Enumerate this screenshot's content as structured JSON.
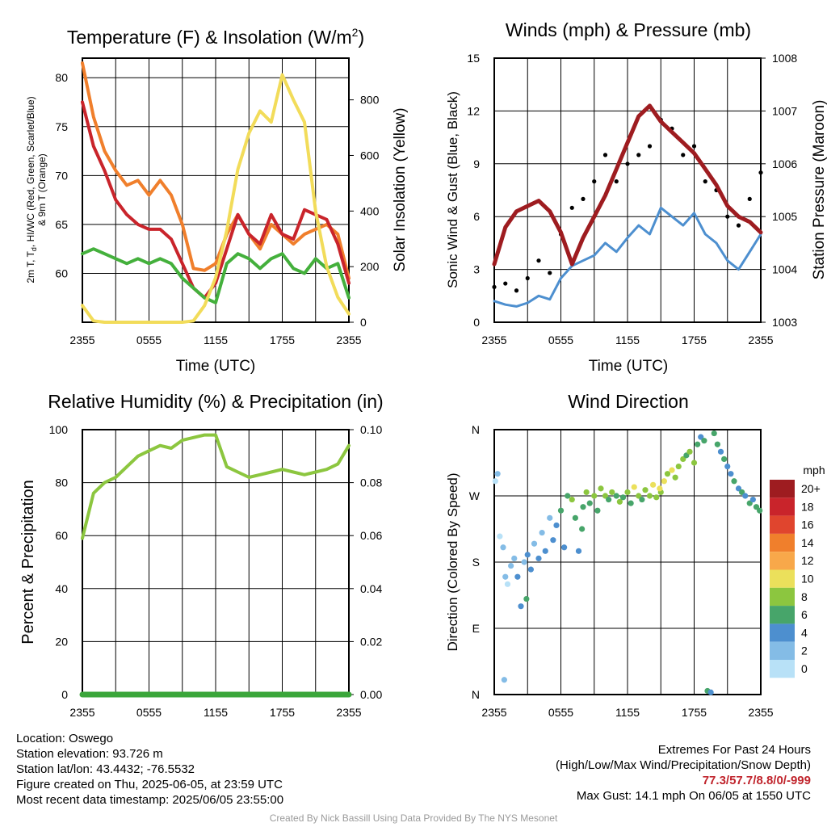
{
  "chart_data": [
    {
      "type": "line",
      "title": "Temperature (F) & Insolation (W/m²)",
      "xlabel": "Time (UTC)",
      "ylabel": "2m T, T_d, HI/WC (Red, Green, Scarlet/Blue) & 9m T (Orange)",
      "y2label": "Solar Insolation (Yellow)",
      "x_ticks": [
        "2355",
        "0555",
        "1155",
        "1755",
        "2355"
      ],
      "ylim": [
        55,
        82
      ],
      "y_ticks": [
        60,
        65,
        70,
        75,
        80
      ],
      "y2lim": [
        0,
        950
      ],
      "y2_ticks": [
        0,
        200,
        400,
        600,
        800
      ],
      "x": [
        0,
        1,
        2,
        3,
        4,
        5,
        6,
        7,
        8,
        9,
        10,
        11,
        12,
        13,
        14,
        15,
        16,
        17,
        18,
        19,
        20,
        21,
        22,
        23,
        24
      ],
      "series": [
        {
          "name": "9m T",
          "axis": "left",
          "color": "#f07f2c",
          "values": [
            81.5,
            76,
            72.5,
            70.5,
            69,
            69.5,
            68,
            69.5,
            68,
            65,
            60.5,
            60.3,
            61,
            64,
            66,
            64,
            62.5,
            65,
            64,
            63,
            64,
            64.5,
            65,
            64,
            59.5
          ]
        },
        {
          "name": "2m T",
          "axis": "left",
          "color": "#c9242b",
          "values": [
            77.5,
            73,
            70.5,
            67.5,
            66,
            65,
            64.5,
            64.5,
            63.5,
            61,
            58.5,
            57.5,
            59,
            62.5,
            66,
            64,
            63,
            66,
            64,
            63.5,
            66.5,
            66,
            65.5,
            63,
            59
          ]
        },
        {
          "name": "T_d",
          "axis": "left",
          "color": "#44b03c",
          "values": [
            62,
            62.5,
            62,
            61.5,
            61,
            61.5,
            61,
            61.5,
            61,
            59.5,
            58.5,
            57.5,
            57,
            61,
            62,
            61.5,
            60.5,
            61.5,
            62,
            60.5,
            60,
            61.5,
            60.5,
            61,
            57.5
          ]
        },
        {
          "name": "Solar Insolation",
          "axis": "right",
          "color": "#f2dc5a",
          "values": [
            60,
            5,
            0,
            0,
            0,
            0,
            0,
            0,
            0,
            0,
            5,
            60,
            160,
            330,
            550,
            680,
            760,
            720,
            890,
            800,
            720,
            400,
            200,
            90,
            30
          ]
        }
      ]
    },
    {
      "type": "line",
      "title": "Winds (mph) & Pressure (mb)",
      "xlabel": "Time (UTC)",
      "ylabel": "Sonic Wind & Gust (Blue, Black)",
      "y2label": "Station Pressure (Maroon)",
      "x_ticks": [
        "2355",
        "0555",
        "1155",
        "1755",
        "2355"
      ],
      "ylim": [
        0,
        15
      ],
      "y_ticks": [
        0,
        3,
        6,
        9,
        12,
        15
      ],
      "y2lim": [
        1003,
        1008
      ],
      "y2_ticks": [
        1003,
        1004,
        1005,
        1006,
        1007,
        1008
      ],
      "x": [
        0,
        1,
        2,
        3,
        4,
        5,
        6,
        7,
        8,
        9,
        10,
        11,
        12,
        13,
        14,
        15,
        16,
        17,
        18,
        19,
        20,
        21,
        22,
        23,
        24
      ],
      "series": [
        {
          "name": "Sonic Wind",
          "axis": "left",
          "color": "#4d8fcf",
          "values": [
            1.2,
            1.0,
            0.9,
            1.1,
            1.5,
            1.3,
            2.5,
            3.2,
            3.5,
            3.8,
            4.5,
            4.0,
            4.8,
            5.5,
            5.0,
            6.5,
            6.0,
            5.5,
            6.2,
            5.0,
            4.5,
            3.5,
            3.0,
            4.0,
            5.0
          ]
        },
        {
          "name": "Gust",
          "axis": "left",
          "color": "#000000",
          "values": [
            2.0,
            2.2,
            1.8,
            2.5,
            3.5,
            2.8,
            5.0,
            6.5,
            7.0,
            8.0,
            9.5,
            8.0,
            9.0,
            9.5,
            10.0,
            11.5,
            11.0,
            9.5,
            10.0,
            8.0,
            7.5,
            6.0,
            5.5,
            7.0,
            8.5
          ]
        },
        {
          "name": "Station Pressure",
          "axis": "right",
          "color": "#9e1c20",
          "values": [
            1004.1,
            1004.8,
            1005.1,
            1005.2,
            1005.3,
            1005.1,
            1004.7,
            1004.1,
            1004.6,
            1005.0,
            1005.4,
            1005.9,
            1006.4,
            1006.9,
            1007.1,
            1006.8,
            1006.6,
            1006.4,
            1006.2,
            1005.9,
            1005.6,
            1005.2,
            1005.0,
            1004.9,
            1004.7
          ]
        }
      ]
    },
    {
      "type": "line",
      "title": "Relative Humidity (%) & Precipitation (in)",
      "ylabel": "Percent & Precipitation",
      "x_ticks": [
        "2355",
        "0555",
        "1155",
        "1755",
        "2355"
      ],
      "ylim": [
        0,
        100
      ],
      "y_ticks": [
        0,
        20,
        40,
        60,
        80,
        100
      ],
      "y2lim": [
        0,
        0.1
      ],
      "y2_ticks": [
        "0.00",
        "0.02",
        "0.04",
        "0.06",
        "0.08",
        "0.10"
      ],
      "x": [
        0,
        1,
        2,
        3,
        4,
        5,
        6,
        7,
        8,
        9,
        10,
        11,
        12,
        13,
        14,
        15,
        16,
        17,
        18,
        19,
        20,
        21,
        22,
        23,
        24
      ],
      "series": [
        {
          "name": "Relative Humidity",
          "axis": "left",
          "color": "#8cc63f",
          "values": [
            59,
            76,
            80,
            82,
            86,
            90,
            92,
            94,
            93,
            96,
            97,
            98,
            98,
            86,
            84,
            82,
            83,
            84,
            85,
            84,
            83,
            84,
            85,
            87,
            94
          ]
        },
        {
          "name": "Precipitation",
          "axis": "right",
          "color": "#3ba63b",
          "values": [
            0,
            0,
            0,
            0,
            0,
            0,
            0,
            0,
            0,
            0,
            0,
            0,
            0,
            0,
            0,
            0,
            0,
            0,
            0,
            0,
            0,
            0,
            0,
            0,
            0
          ]
        }
      ]
    },
    {
      "type": "scatter",
      "title": "Wind Direction",
      "ylabel": "Direction (Colored By Speed)",
      "x_ticks": [
        "2355",
        "0555",
        "1155",
        "1755",
        "2355"
      ],
      "y_ticks": [
        "N",
        "E",
        "S",
        "W",
        "N"
      ],
      "ylim": [
        0,
        360
      ],
      "colorbar": {
        "unit": "mph",
        "labels": [
          "20+",
          "18",
          "16",
          "14",
          "12",
          "10",
          "8",
          "6",
          "4",
          "2",
          "0"
        ],
        "colors": [
          "#9e1c20",
          "#c9242b",
          "#e0452e",
          "#f07f2c",
          "#f8a84a",
          "#ebe05b",
          "#8cc63f",
          "#47a56a",
          "#4d8fcf",
          "#84bce6",
          "#b8e1f7"
        ]
      },
      "points": [
        [
          0.1,
          290,
          0
        ],
        [
          0.3,
          300,
          1
        ],
        [
          0.5,
          215,
          0
        ],
        [
          0.8,
          200,
          1
        ],
        [
          1.0,
          160,
          1
        ],
        [
          1.2,
          150,
          0
        ],
        [
          1.5,
          175,
          1
        ],
        [
          1.8,
          185,
          1
        ],
        [
          2.1,
          160,
          2
        ],
        [
          2.4,
          120,
          2
        ],
        [
          2.7,
          180,
          1
        ],
        [
          3.0,
          190,
          2
        ],
        [
          3.3,
          170,
          2
        ],
        [
          3.6,
          205,
          1
        ],
        [
          4.0,
          185,
          2
        ],
        [
          4.3,
          220,
          1
        ],
        [
          4.6,
          195,
          2
        ],
        [
          5.0,
          240,
          1
        ],
        [
          5.3,
          210,
          2
        ],
        [
          5.6,
          230,
          2
        ],
        [
          6.0,
          250,
          3
        ],
        [
          6.3,
          200,
          2
        ],
        [
          6.6,
          270,
          3
        ],
        [
          7.0,
          265,
          4
        ],
        [
          7.3,
          240,
          3
        ],
        [
          7.6,
          195,
          2
        ],
        [
          8.0,
          255,
          3
        ],
        [
          8.3,
          275,
          4
        ],
        [
          8.6,
          260,
          3
        ],
        [
          9.0,
          270,
          4
        ],
        [
          9.3,
          250,
          3
        ],
        [
          9.6,
          280,
          4
        ],
        [
          10.0,
          270,
          4
        ],
        [
          10.3,
          265,
          3
        ],
        [
          10.6,
          275,
          4
        ],
        [
          11.0,
          270,
          3
        ],
        [
          11.3,
          262,
          4
        ],
        [
          11.6,
          268,
          3
        ],
        [
          12.0,
          275,
          4
        ],
        [
          12.3,
          260,
          3
        ],
        [
          12.6,
          282,
          5
        ],
        [
          13.0,
          270,
          4
        ],
        [
          13.3,
          265,
          3
        ],
        [
          13.6,
          278,
          4
        ],
        [
          14.0,
          270,
          4
        ],
        [
          14.3,
          285,
          5
        ],
        [
          14.6,
          268,
          4
        ],
        [
          15.0,
          275,
          4
        ],
        [
          15.3,
          290,
          5
        ],
        [
          15.6,
          300,
          4
        ],
        [
          16.0,
          305,
          5
        ],
        [
          16.3,
          295,
          4
        ],
        [
          16.6,
          310,
          4
        ],
        [
          17.0,
          320,
          4
        ],
        [
          17.3,
          325,
          3
        ],
        [
          17.6,
          330,
          4
        ],
        [
          18.0,
          315,
          4
        ],
        [
          18.3,
          340,
          3
        ],
        [
          18.6,
          350,
          2
        ],
        [
          18.9,
          345,
          3
        ],
        [
          19.2,
          5,
          3
        ],
        [
          19.5,
          3,
          2
        ],
        [
          19.8,
          355,
          3
        ],
        [
          20.1,
          340,
          3
        ],
        [
          20.4,
          330,
          2
        ],
        [
          20.7,
          320,
          3
        ],
        [
          21.0,
          310,
          2
        ],
        [
          21.3,
          300,
          2
        ],
        [
          21.6,
          290,
          3
        ],
        [
          22.0,
          280,
          2
        ],
        [
          22.3,
          275,
          3
        ],
        [
          22.6,
          270,
          2
        ],
        [
          23.0,
          260,
          3
        ],
        [
          23.3,
          265,
          2
        ],
        [
          23.6,
          255,
          3
        ],
        [
          23.9,
          250,
          3
        ],
        [
          0.9,
          20,
          1
        ],
        [
          2.9,
          130,
          3
        ],
        [
          7.9,
          225,
          3
        ],
        [
          14.9,
          280,
          5
        ]
      ]
    }
  ],
  "info": {
    "location": "Location: Oswego",
    "elevation": "Station elevation: 93.726 m",
    "latlon": "Station lat/lon: 43.4432; -76.5532",
    "created": "Figure created on Thu, 2025-06-05, at 23:59 UTC",
    "recent": "Most recent data timestamp: 2025/06/05 23:55:00"
  },
  "extremes": {
    "title": "Extremes For Past 24 Hours",
    "legend": "(High/Low/Max Wind/Precipitation/Snow Depth)",
    "values": "77.3/57.7/8.8/0/-999",
    "gust": "Max Gust: 14.1 mph On 06/05 at 1550 UTC"
  },
  "credit": "Created By Nick Bassill Using Data Provided By The NYS Mesonet"
}
